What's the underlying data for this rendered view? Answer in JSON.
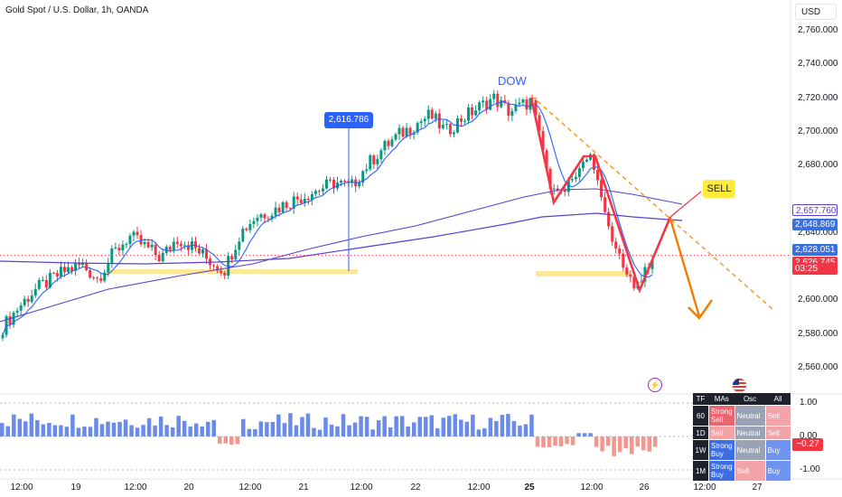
{
  "header": {
    "title": "Gold Spot / U.S. Dollar, 1h, OANDA",
    "currency_button": "USD"
  },
  "annotations": {
    "dow_label": "DOW",
    "sell_label": "SELL",
    "measure_callout": "2,616.786"
  },
  "price_axis": {
    "ticks": [
      "2,760.000",
      "2,740.000",
      "2,720.000",
      "2,700.000",
      "2,680.000",
      "2,640.000",
      "2,620.000",
      "2,600.000",
      "2,580.000",
      "2,560.000"
    ],
    "tick_values": [
      2760,
      2740,
      2720,
      2700,
      2680,
      2640,
      2620,
      2600,
      2580,
      2560
    ],
    "badges": [
      {
        "text": "2,657.760",
        "value": 2657.76,
        "color": "#5b3fd1",
        "style": "outline"
      },
      {
        "text": "2,648.869",
        "value": 2648.869,
        "color": "#3a6fe0",
        "style": "fill"
      },
      {
        "text": "2,628.051",
        "value": 2628.051,
        "color": "#3a6fe0",
        "style": "fill"
      },
      {
        "text": "2,626.745",
        "value": 2626.745,
        "color": "#f23645",
        "style": "fill"
      },
      {
        "text": "03:25",
        "value": null,
        "color": "#f23645",
        "style": "fill"
      }
    ]
  },
  "time_axis": {
    "labels": [
      "12:00",
      "19",
      "12:00",
      "20",
      "12:00",
      "21",
      "12:00",
      "22",
      "12:00",
      "25",
      "12:00",
      "26",
      "12:00",
      "27"
    ]
  },
  "indicator": {
    "axis_ticks": [
      "1.00",
      "0.00",
      "-1.00"
    ],
    "current_badge": "−0.27",
    "table": {
      "headers": [
        "TF",
        "MAs",
        "Osc",
        "All"
      ],
      "rows": [
        {
          "tf": "60",
          "mas": "Strong Sell",
          "osc": "Neutral",
          "all": "Sell"
        },
        {
          "tf": "1D",
          "mas": "Sell",
          "osc": "Neutral",
          "all": "Sell"
        },
        {
          "tf": "1W",
          "mas": "Strong Buy",
          "osc": "Neutral",
          "all": "Buy"
        },
        {
          "tf": "1M",
          "mas": "Strong Buy",
          "osc": "Sell",
          "all": "Buy"
        }
      ]
    }
  },
  "chart_data": {
    "type": "candlestick",
    "title": "Gold Spot / U.S. Dollar, 1h, OANDA",
    "ylim": [
      2548,
      2772
    ],
    "colors": {
      "up": "#089981",
      "down": "#f23645",
      "ma_fast": "#2962ff",
      "ma_slow": "#5b3fd1",
      "dashed_trend": "#f7931a",
      "arrow": "#f57c00"
    },
    "key_levels": {
      "measure_price": 2616.786,
      "last_price": 2626.745,
      "ma_fast": 2628.051,
      "ma_mid": 2648.869,
      "ma_slow": 2657.76
    },
    "close_path": [
      [
        0,
        2584
      ],
      [
        0.03,
        2596
      ],
      [
        0.06,
        2606
      ],
      [
        0.09,
        2612
      ],
      [
        0.12,
        2618
      ],
      [
        0.15,
        2621
      ],
      [
        0.18,
        2613
      ],
      [
        0.21,
        2628
      ],
      [
        0.24,
        2638
      ],
      [
        0.27,
        2632
      ],
      [
        0.3,
        2625
      ],
      [
        0.33,
        2637
      ],
      [
        0.36,
        2632
      ],
      [
        0.39,
        2624
      ],
      [
        0.42,
        2618
      ],
      [
        0.45,
        2640
      ],
      [
        0.48,
        2650
      ],
      [
        0.51,
        2653
      ],
      [
        0.54,
        2658
      ],
      [
        0.57,
        2662
      ],
      [
        0.6,
        2666
      ],
      [
        0.63,
        2670
      ],
      [
        0.66,
        2667
      ],
      [
        0.69,
        2680
      ],
      [
        0.72,
        2690
      ],
      [
        0.75,
        2698
      ],
      [
        0.78,
        2704
      ],
      [
        0.81,
        2710
      ],
      [
        0.84,
        2700
      ],
      [
        0.87,
        2708
      ],
      [
        0.9,
        2714
      ],
      [
        0.93,
        2720
      ],
      [
        0.96,
        2712
      ],
      [
        1.0,
        2718
      ]
    ],
    "close_path_2": [
      [
        0,
        2718
      ],
      [
        0.08,
        2695
      ],
      [
        0.16,
        2665
      ],
      [
        0.24,
        2662
      ],
      [
        0.32,
        2670
      ],
      [
        0.4,
        2676
      ],
      [
        0.48,
        2688
      ],
      [
        0.56,
        2670
      ],
      [
        0.64,
        2640
      ],
      [
        0.72,
        2627
      ],
      [
        0.8,
        2614
      ],
      [
        0.88,
        2608
      ],
      [
        0.96,
        2620
      ],
      [
        1.0,
        2627
      ]
    ],
    "histogram_bars_note": "Technical Ratings oscillator, values within [-1, 1]",
    "indicator_ylim": [
      -1.2,
      1.2
    ]
  }
}
